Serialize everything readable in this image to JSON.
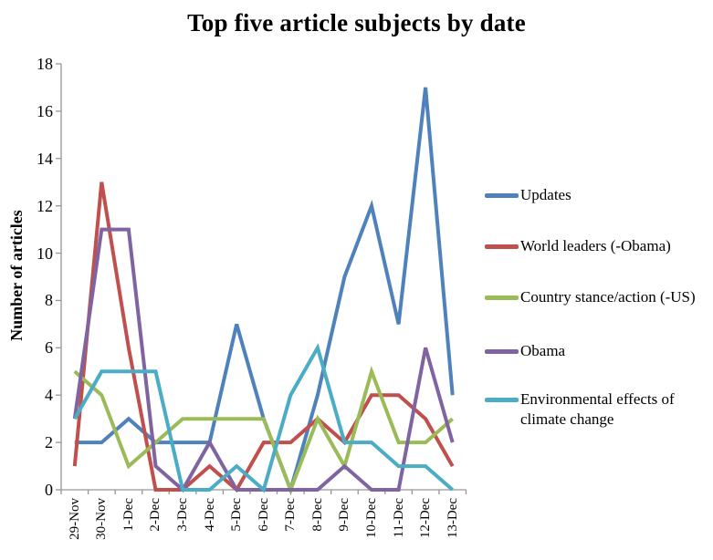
{
  "chart_data": {
    "type": "line",
    "title": "Top five article subjects by date",
    "ylabel": "Number of articles",
    "xlabel": "",
    "ylim": [
      0,
      18
    ],
    "y_ticks": [
      0,
      2,
      4,
      6,
      8,
      10,
      12,
      14,
      16,
      18
    ],
    "grid": false,
    "legend_position": "right",
    "axis_color": "#969696",
    "categories": [
      "29-Nov",
      "30-Nov",
      "1-Dec",
      "2-Dec",
      "3-Dec",
      "4-Dec",
      "5-Dec",
      "6-Dec",
      "7-Dec",
      "8-Dec",
      "9-Dec",
      "10-Dec",
      "11-Dec",
      "12-Dec",
      "13-Dec"
    ],
    "series": [
      {
        "name": "Updates",
        "color": "#4F81BD",
        "values": [
          2,
          2,
          3,
          2,
          2,
          2,
          7,
          3,
          0,
          4,
          9,
          12,
          7,
          17,
          4
        ]
      },
      {
        "name": "World leaders (-Obama)",
        "color": "#C0504D",
        "values": [
          1,
          13,
          6,
          0,
          0,
          1,
          0,
          2,
          2,
          3,
          2,
          4,
          4,
          3,
          1
        ]
      },
      {
        "name": "Country stance/action (-US)",
        "color": "#9BBB59",
        "values": [
          5,
          4,
          1,
          2,
          3,
          3,
          3,
          3,
          0,
          3,
          1,
          5,
          2,
          2,
          3
        ]
      },
      {
        "name": "Obama",
        "color": "#8064A2",
        "values": [
          3,
          11,
          11,
          1,
          0,
          2,
          0,
          0,
          0,
          0,
          1,
          0,
          0,
          6,
          2
        ]
      },
      {
        "name": "Environmental effects of climate change",
        "color": "#4BACC6",
        "values": [
          3,
          5,
          5,
          5,
          0,
          0,
          1,
          0,
          4,
          6,
          2,
          2,
          1,
          1,
          0
        ]
      }
    ]
  }
}
